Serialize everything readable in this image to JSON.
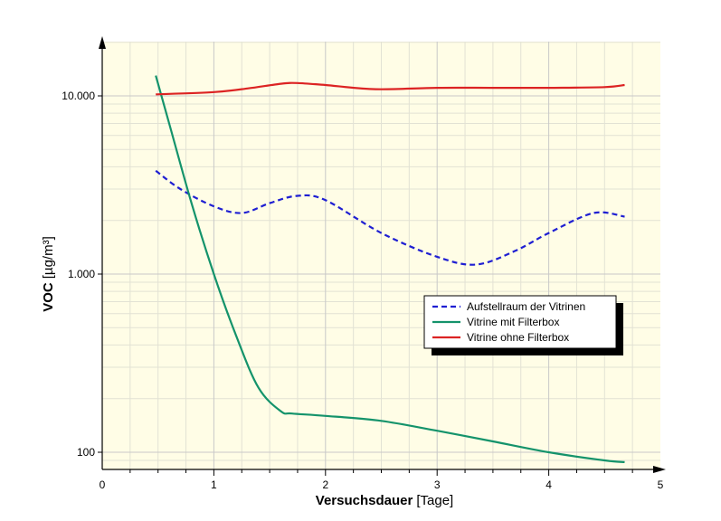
{
  "colors": {
    "plot_background": "#fffde6",
    "grid_major": "#c8c8c8",
    "grid_minor": "#e2e2d4",
    "axis": "#000000",
    "legend_shadow": "#000000"
  },
  "chart_data": {
    "type": "line",
    "title": "",
    "xlabel_bold": "Versuchsdauer",
    "xlabel_unit": "[Tage]",
    "ylabel_bold": "VOC",
    "ylabel_unit": "[µg/m³]",
    "xlim": [
      0,
      5
    ],
    "ylim": [
      85,
      20000
    ],
    "y_scale": "log",
    "grid": true,
    "legend_position": "center-right",
    "x_ticks": [
      0,
      1,
      2,
      3,
      4,
      5
    ],
    "x_tick_labels": [
      "0",
      "1",
      "2",
      "3",
      "4",
      "5"
    ],
    "y_ticks": [
      100,
      1000,
      10000
    ],
    "y_tick_labels": [
      "100",
      "1.000",
      "10.000"
    ],
    "series": [
      {
        "name": "Aufstellraum der Vitrinen",
        "color": "#1f1fd2",
        "dashed": true,
        "x": [
          0.48,
          0.7,
          1.0,
          1.25,
          1.5,
          1.75,
          2.0,
          2.5,
          3.0,
          3.35,
          3.7,
          4.0,
          4.4,
          4.68
        ],
        "y": [
          3800,
          3000,
          2400,
          2200,
          2500,
          2750,
          2600,
          1700,
          1250,
          1130,
          1350,
          1700,
          2200,
          2100
        ]
      },
      {
        "name": "Vitrine mit Filterbox",
        "color": "#14936b",
        "dashed": false,
        "x": [
          0.48,
          0.6,
          0.8,
          1.0,
          1.2,
          1.4,
          1.6,
          1.7,
          2.0,
          2.5,
          3.0,
          3.5,
          4.0,
          4.5,
          4.68
        ],
        "y": [
          13000,
          7000,
          2500,
          1000,
          450,
          230,
          170,
          165,
          160,
          150,
          132,
          115,
          100,
          90,
          88
        ]
      },
      {
        "name": "Vitrine ohne Filterbox",
        "color": "#dc2323",
        "dashed": false,
        "x": [
          0.48,
          1.0,
          1.3,
          1.6,
          1.75,
          2.0,
          2.45,
          3.0,
          3.5,
          4.0,
          4.5,
          4.68
        ],
        "y": [
          10200,
          10500,
          11000,
          11700,
          11800,
          11500,
          10900,
          11100,
          11100,
          11100,
          11200,
          11500
        ]
      }
    ]
  }
}
